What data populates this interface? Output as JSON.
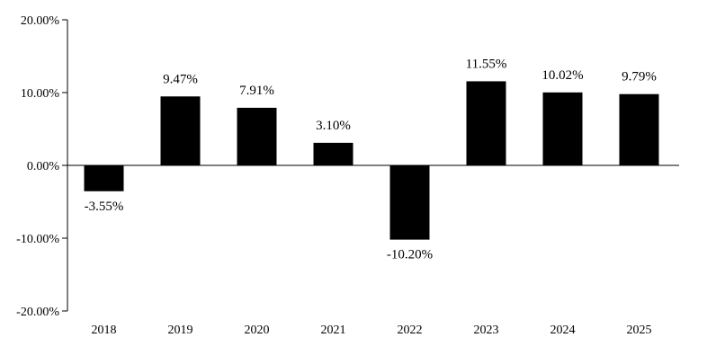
{
  "chart_data": {
    "type": "bar",
    "title": "",
    "xlabel": "",
    "ylabel": "",
    "categories": [
      "2018",
      "2019",
      "2020",
      "2021",
      "2022",
      "2023",
      "2024",
      "2025"
    ],
    "values": [
      -3.55,
      9.47,
      7.91,
      3.1,
      -10.2,
      11.55,
      10.02,
      9.79
    ],
    "value_labels": [
      "-3.55%",
      "9.47%",
      "7.91%",
      "3.10%",
      "-10.20%",
      "11.55%",
      "10.02%",
      "9.79%"
    ],
    "ylim": [
      -20,
      20
    ],
    "yticks": [
      -20,
      -10,
      0,
      10,
      20
    ],
    "ytick_labels": [
      "-20.00%",
      "-10.00%",
      "0.00%",
      "10.00%",
      "20.00%"
    ],
    "grid": false,
    "legend": "none",
    "bar_color": "#000000",
    "axis_color": "#000000"
  }
}
